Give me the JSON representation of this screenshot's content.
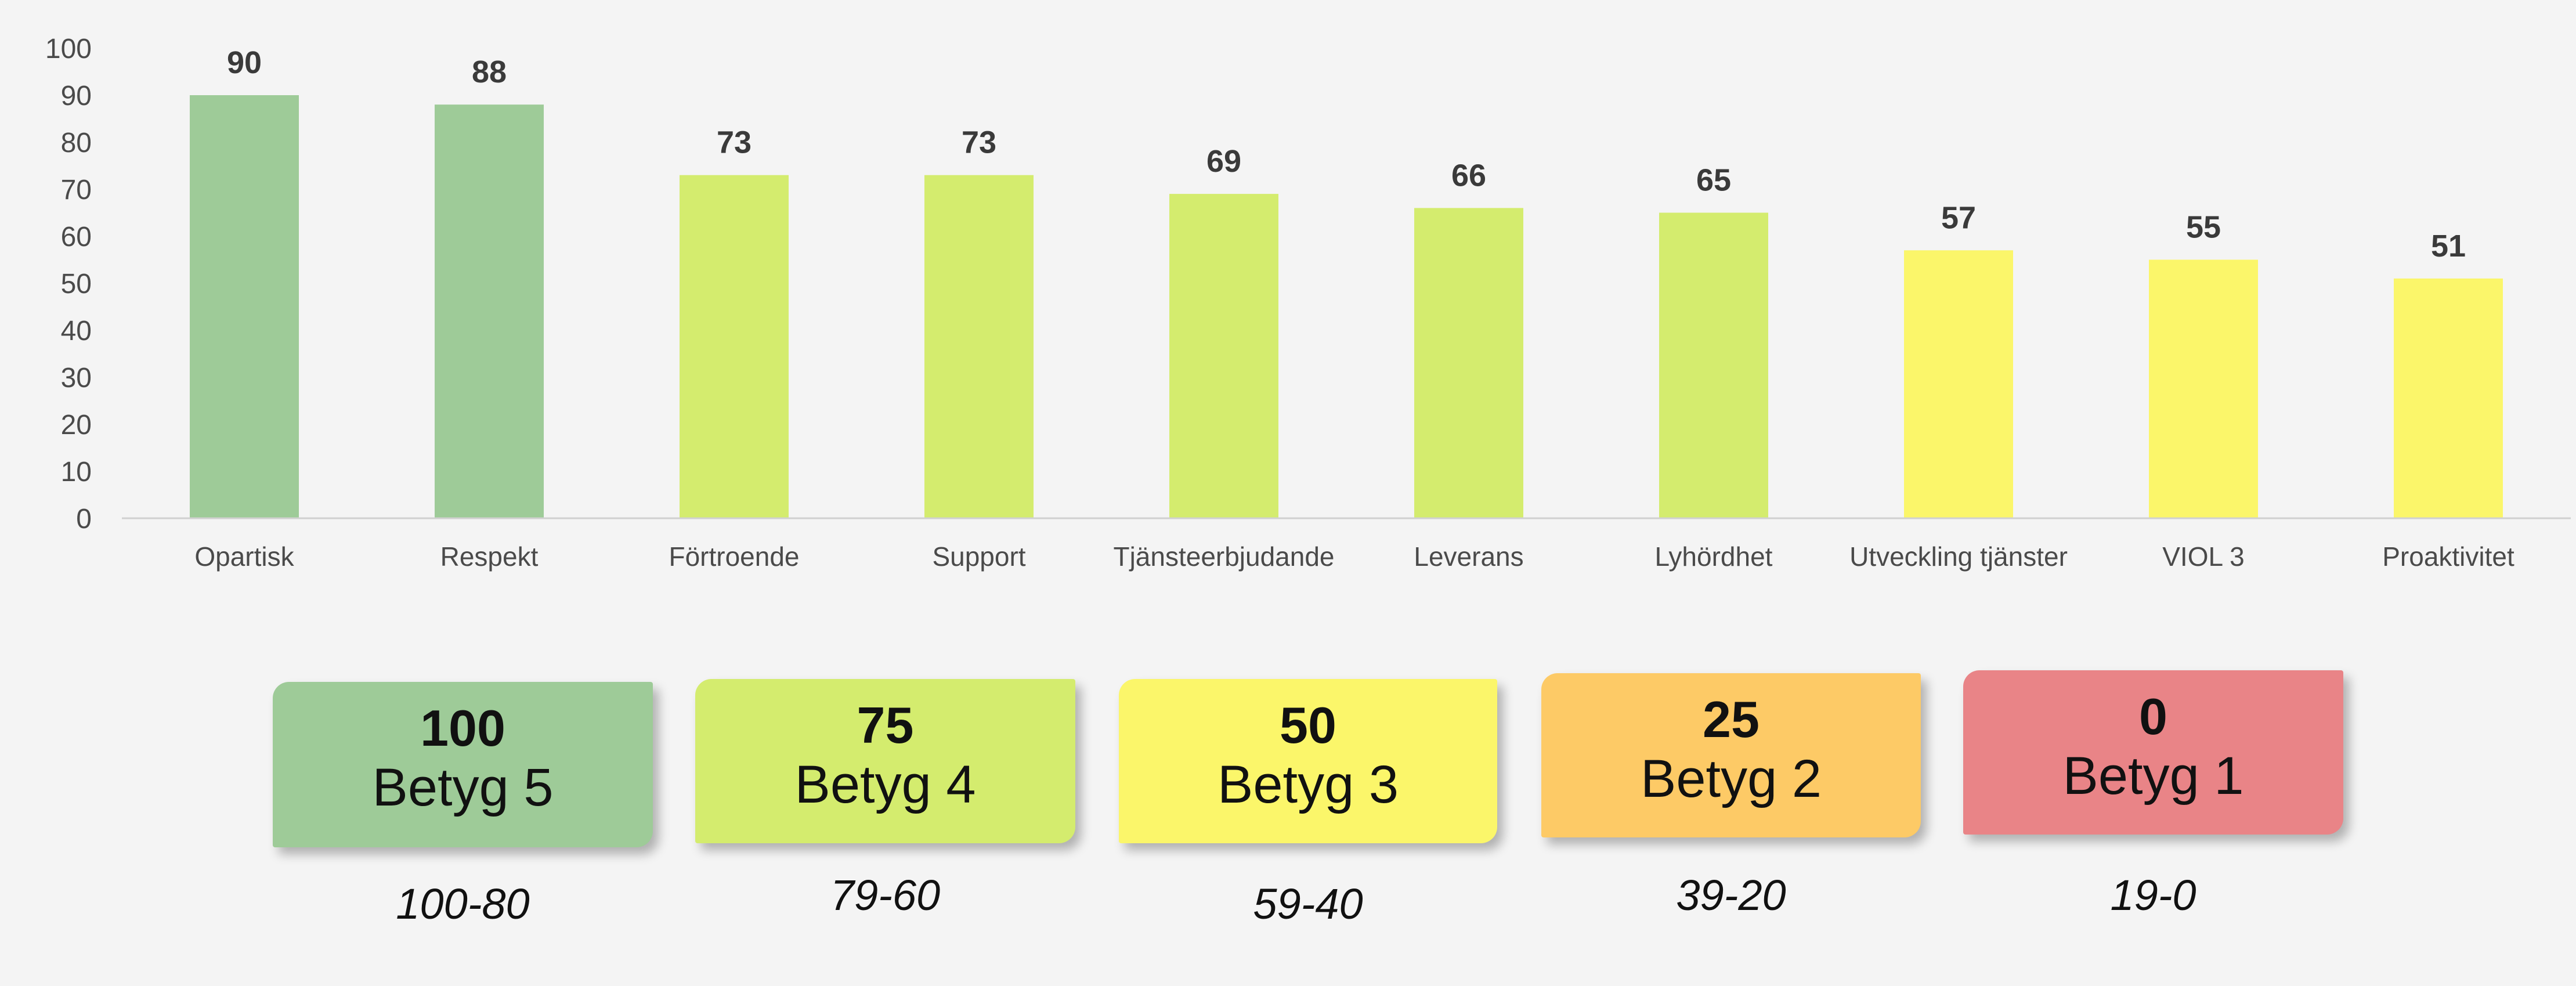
{
  "chart_data": {
    "type": "bar",
    "categories": [
      "Opartisk",
      "Respekt",
      "Förtroende",
      "Support",
      "Tjänsteerbjudande",
      "Leverans",
      "Lyhördhet",
      "Utveckling tjänster",
      "VIOL 3",
      "Proaktivitet"
    ],
    "values": [
      90,
      88,
      73,
      73,
      69,
      66,
      65,
      57,
      55,
      51
    ],
    "ylim": [
      0,
      100
    ],
    "yticks": [
      0,
      10,
      20,
      30,
      40,
      50,
      60,
      70,
      80,
      90,
      100
    ],
    "grid": false,
    "data_labels": true
  },
  "legend": [
    {
      "score": "100",
      "label": "Betyg 5",
      "range": "100-80",
      "color": "#9ecb98"
    },
    {
      "score": "75",
      "label": "Betyg 4",
      "range": "79-60",
      "color": "#d4ec6e"
    },
    {
      "score": "50",
      "label": "Betyg 3",
      "range": "59-40",
      "color": "#fbf66a"
    },
    {
      "score": "25",
      "label": "Betyg 2",
      "range": "39-20",
      "color": "#fdca66"
    },
    {
      "score": "0",
      "label": "Betyg 1",
      "range": "19-0",
      "color": "#e98487"
    }
  ],
  "colors": {
    "axis_text": "#4a4a4a",
    "value_label": "#3a3a3a",
    "axis_line": "#d0d0d0"
  }
}
